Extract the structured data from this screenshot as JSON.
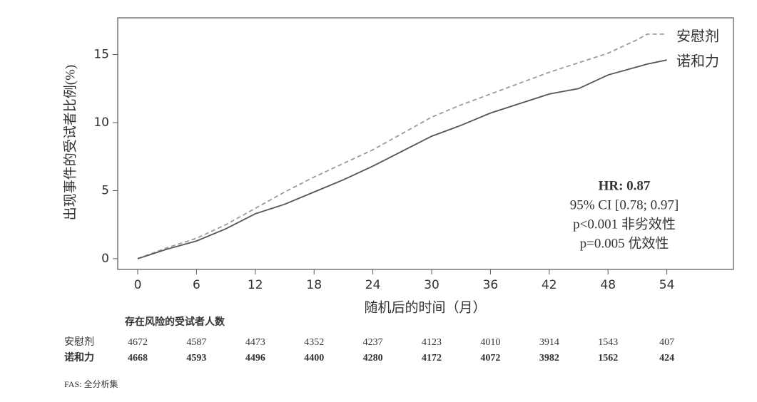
{
  "chart_data": {
    "type": "line",
    "y_label": "出现事件的受试者比例(%)",
    "x_label": "随机后的时间（月）",
    "x": [
      0,
      3,
      6,
      9,
      12,
      15,
      18,
      21,
      24,
      27,
      30,
      33,
      36,
      39,
      42,
      45,
      48,
      51,
      52,
      54
    ],
    "series": [
      {
        "name": "安慰剂",
        "color": "#9a9a9a",
        "line_style": "dashed",
        "values": [
          0,
          0.8,
          1.5,
          2.5,
          3.7,
          4.9,
          6.0,
          7.0,
          8.0,
          9.2,
          10.4,
          11.3,
          12.1,
          12.9,
          13.7,
          14.4,
          15.1,
          16.1,
          16.5,
          16.5
        ]
      },
      {
        "name": "诺和力",
        "color": "#555555",
        "line_style": "solid",
        "values": [
          0,
          0.7,
          1.3,
          2.2,
          3.3,
          4.0,
          4.9,
          5.8,
          6.8,
          7.9,
          9.0,
          9.8,
          10.7,
          11.4,
          12.1,
          12.5,
          13.5,
          14.1,
          14.3,
          14.6
        ]
      }
    ],
    "xlim": [
      -2.04,
      60.8
    ],
    "ylim": [
      -0.79,
      17.7
    ],
    "xticks": [
      0,
      6,
      12,
      18,
      24,
      30,
      36,
      42,
      48,
      54
    ],
    "yticks": [
      0,
      5,
      10,
      15
    ],
    "annotations": [
      "HR: 0.87",
      "95% CI [0.78; 0.97]",
      "p<0.001 非劣效性",
      "p=0.005 优效性"
    ],
    "at_risk": {
      "title": "存在风险的受试者人数",
      "counts": [
        [
          4672,
          4587,
          4473,
          4352,
          4237,
          4123,
          4010,
          3914,
          1543,
          407
        ],
        [
          4668,
          4593,
          4496,
          4400,
          4280,
          4172,
          4072,
          3982,
          1562,
          424
        ]
      ]
    },
    "footnote": "FAS: 全分析集"
  }
}
